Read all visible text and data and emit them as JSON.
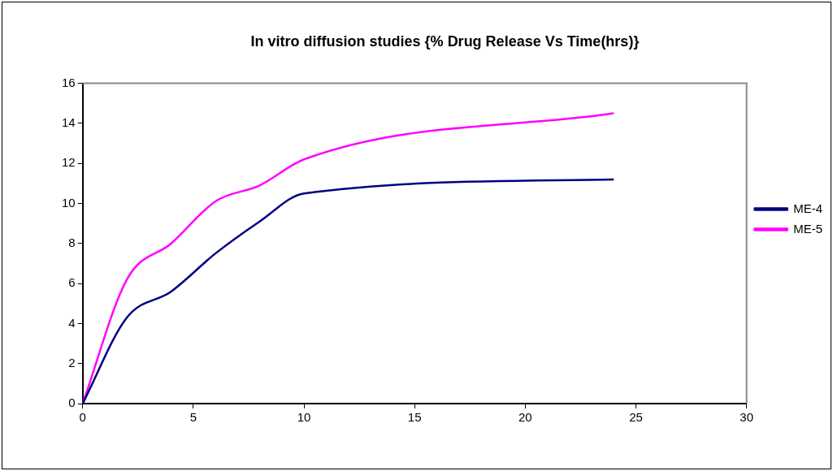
{
  "chart_data": {
    "type": "line",
    "title": "In vitro diffusion studies {% Drug Release Vs Time(hrs)}",
    "x": [
      0,
      2,
      4,
      6,
      8,
      10,
      24
    ],
    "series": [
      {
        "name": "ME-4",
        "color": "#000080",
        "values": [
          0,
          4.3,
          5.6,
          7.5,
          9.1,
          10.5,
          11.2
        ]
      },
      {
        "name": "ME-5",
        "color": "#ff00ff",
        "values": [
          0,
          6.2,
          8.0,
          10.1,
          10.9,
          12.2,
          14.5
        ]
      }
    ],
    "xlim": [
      0,
      30
    ],
    "xticks": [
      0,
      5,
      10,
      15,
      20,
      25,
      30
    ],
    "ylim": [
      0,
      16
    ],
    "yticks": [
      0,
      2,
      4,
      6,
      8,
      10,
      12,
      14,
      16
    ],
    "grid": false,
    "legend": "right",
    "marker": "none",
    "line_style": "solid"
  }
}
